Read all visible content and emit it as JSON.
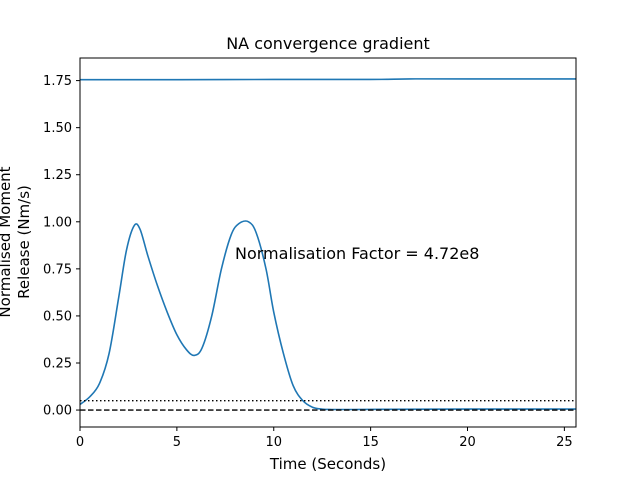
{
  "chart_data": {
    "type": "line",
    "title": "NA convergence gradient",
    "xlabel": "Time (Seconds)",
    "ylabel_lines": [
      "Normalised Moment",
      "Release (Nm/s)"
    ],
    "xlim": [
      0,
      25.6
    ],
    "ylim": [
      -0.09,
      1.87
    ],
    "xticks": [
      0,
      5,
      10,
      15,
      20,
      25
    ],
    "xtick_labels": [
      "0",
      "5",
      "10",
      "15",
      "20",
      "25"
    ],
    "yticks": [
      0.0,
      0.25,
      0.5,
      0.75,
      1.0,
      1.25,
      1.5,
      1.75
    ],
    "ytick_labels": [
      "0.00",
      "0.25",
      "0.50",
      "0.75",
      "1.00",
      "1.25",
      "1.50",
      "1.75"
    ],
    "grid": false,
    "annotation": {
      "text": "Normalisation Factor = 4.72e8",
      "x": 8.0,
      "y": 0.82
    },
    "series": [
      {
        "style": "solid",
        "color": "#1f77b4",
        "x": [
          0,
          5,
          10,
          15,
          17,
          20,
          25.6
        ],
        "y": [
          1.755,
          1.755,
          1.756,
          1.756,
          1.759,
          1.759,
          1.759
        ]
      },
      {
        "style": "solid",
        "color": "#1f77b4",
        "x": [
          0,
          0.5,
          1.0,
          1.5,
          2.0,
          2.4,
          2.8,
          3.1,
          3.5,
          4.0,
          4.5,
          5.0,
          5.5,
          5.9,
          6.3,
          6.8,
          7.3,
          7.8,
          8.2,
          8.7,
          9.1,
          9.6,
          10.0,
          10.5,
          11.0,
          11.5,
          12.0,
          12.5,
          13.0,
          14.0,
          16.0,
          20.0,
          25.6
        ],
        "y": [
          0.03,
          0.07,
          0.14,
          0.3,
          0.6,
          0.85,
          0.98,
          0.96,
          0.82,
          0.66,
          0.52,
          0.4,
          0.32,
          0.29,
          0.33,
          0.5,
          0.75,
          0.93,
          0.99,
          1.0,
          0.94,
          0.75,
          0.52,
          0.3,
          0.13,
          0.05,
          0.015,
          0.005,
          0.003,
          0.003,
          0.004,
          0.005,
          0.005
        ]
      },
      {
        "style": "dotted",
        "color": "#000000",
        "x": [
          0,
          25.6
        ],
        "y": [
          0.05,
          0.05
        ]
      },
      {
        "style": "dashed",
        "color": "#000000",
        "x": [
          0,
          25.6
        ],
        "y": [
          0.0,
          0.0
        ]
      }
    ]
  }
}
